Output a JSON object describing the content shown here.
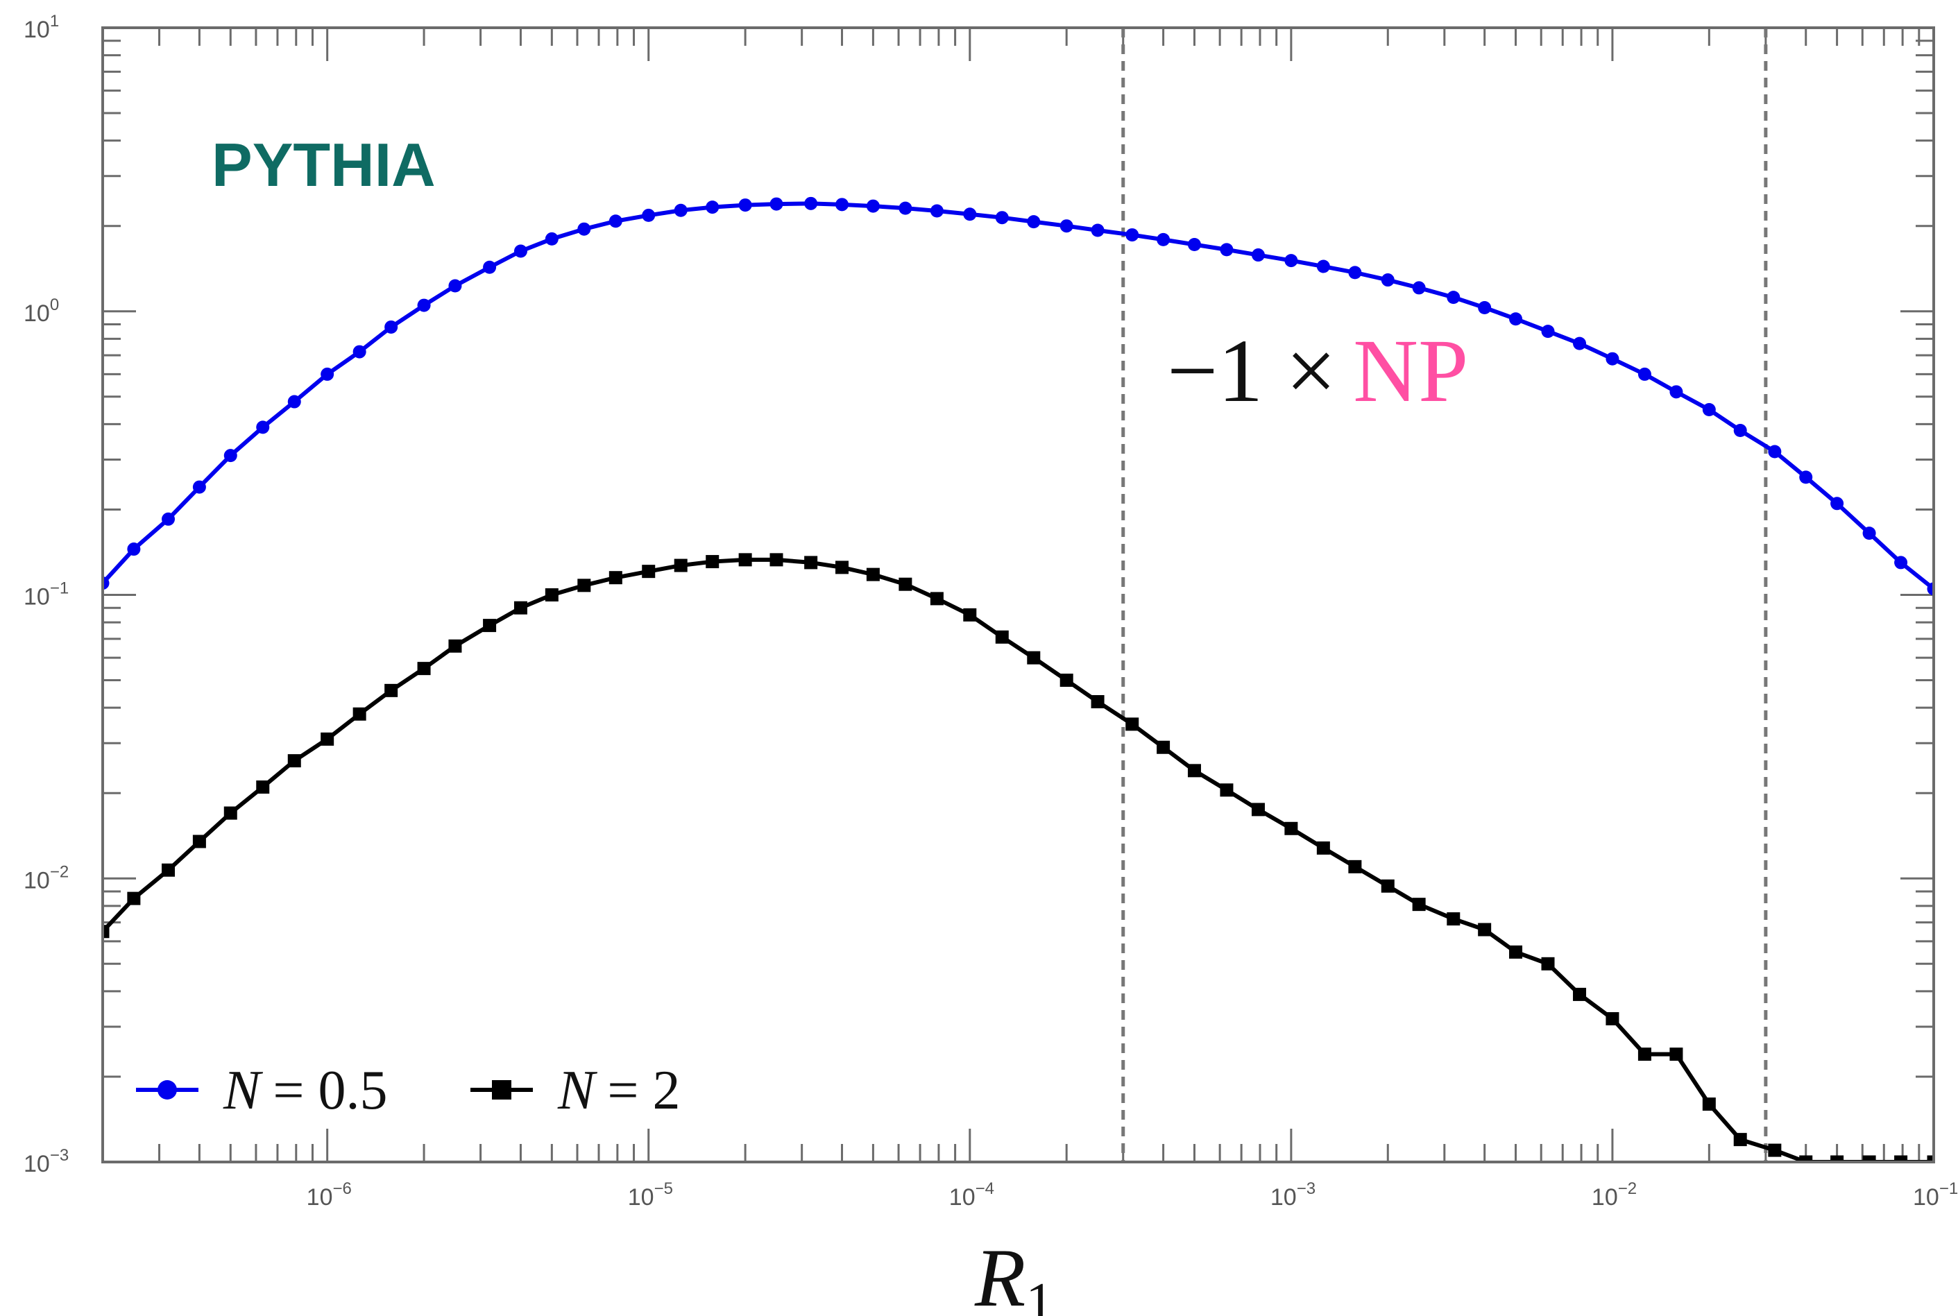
{
  "chart_data": {
    "type": "line",
    "xscale": "log",
    "yscale": "log",
    "xlim": [
      2e-07,
      0.1
    ],
    "ylim": [
      0.001,
      10
    ],
    "x_ticks": [
      {
        "value": 1e-06,
        "base": "10",
        "exp": "−6"
      },
      {
        "value": 1e-05,
        "base": "10",
        "exp": "−5"
      },
      {
        "value": 0.0001,
        "base": "10",
        "exp": "−4"
      },
      {
        "value": 0.001,
        "base": "10",
        "exp": "−3"
      },
      {
        "value": 0.01,
        "base": "10",
        "exp": "−2"
      },
      {
        "value": 0.1,
        "base": "10",
        "exp": "−1"
      }
    ],
    "y_ticks": [
      {
        "value": 0.001,
        "base": "10",
        "exp": "−3"
      },
      {
        "value": 0.01,
        "base": "10",
        "exp": "−2"
      },
      {
        "value": 0.1,
        "base": "10",
        "exp": "−1"
      },
      {
        "value": 1,
        "base": "10",
        "exp": "0"
      },
      {
        "value": 10,
        "base": "10",
        "exp": "1"
      }
    ],
    "xlabel": {
      "main": "R",
      "sub": "1"
    },
    "ylabel": "",
    "vlines": [
      0.0003,
      0.03
    ],
    "annotation_pythia": "PYTHIA",
    "annotation_prefix": "−1 ×",
    "annotation_np": "NP",
    "legend_position": "bottom-left",
    "series": [
      {
        "name": "N = 0.5",
        "name_var": "N",
        "name_rest": "= 0.5",
        "color": "#0000ee",
        "marker": "circle",
        "x": [
          2e-07,
          2.5e-07,
          3.2e-07,
          4e-07,
          5e-07,
          6.3e-07,
          7.9e-07,
          1e-06,
          1.26e-06,
          1.58e-06,
          2e-06,
          2.5e-06,
          3.2e-06,
          4e-06,
          5e-06,
          6.3e-06,
          7.9e-06,
          1e-05,
          1.26e-05,
          1.58e-05,
          2e-05,
          2.5e-05,
          3.2e-05,
          4e-05,
          5e-05,
          6.3e-05,
          7.9e-05,
          0.0001,
          0.000126,
          0.000158,
          0.0002,
          0.00025,
          0.00032,
          0.0004,
          0.0005,
          0.00063,
          0.00079,
          0.001,
          0.00126,
          0.00158,
          0.002,
          0.0025,
          0.0032,
          0.004,
          0.005,
          0.0063,
          0.0079,
          0.01,
          0.0126,
          0.0158,
          0.02,
          0.025,
          0.032,
          0.04,
          0.05,
          0.063,
          0.079,
          0.1
        ],
        "y": [
          0.11,
          0.145,
          0.185,
          0.24,
          0.31,
          0.39,
          0.48,
          0.6,
          0.72,
          0.88,
          1.05,
          1.23,
          1.43,
          1.63,
          1.8,
          1.95,
          2.08,
          2.18,
          2.27,
          2.33,
          2.37,
          2.39,
          2.4,
          2.38,
          2.35,
          2.31,
          2.26,
          2.2,
          2.14,
          2.07,
          2.0,
          1.93,
          1.86,
          1.79,
          1.72,
          1.65,
          1.58,
          1.51,
          1.44,
          1.37,
          1.29,
          1.21,
          1.12,
          1.03,
          0.94,
          0.85,
          0.77,
          0.68,
          0.6,
          0.52,
          0.45,
          0.38,
          0.32,
          0.26,
          0.21,
          0.165,
          0.13,
          0.105
        ]
      },
      {
        "name": "N = 2",
        "name_var": "N",
        "name_rest": "= 2",
        "color": "#000000",
        "marker": "square",
        "x": [
          2e-07,
          2.5e-07,
          3.2e-07,
          4e-07,
          5e-07,
          6.3e-07,
          7.9e-07,
          1e-06,
          1.26e-06,
          1.58e-06,
          2e-06,
          2.5e-06,
          3.2e-06,
          4e-06,
          5e-06,
          6.3e-06,
          7.9e-06,
          1e-05,
          1.26e-05,
          1.58e-05,
          2e-05,
          2.5e-05,
          3.2e-05,
          4e-05,
          5e-05,
          6.3e-05,
          7.9e-05,
          0.0001,
          0.000126,
          0.000158,
          0.0002,
          0.00025,
          0.00032,
          0.0004,
          0.0005,
          0.00063,
          0.00079,
          0.001,
          0.00126,
          0.00158,
          0.002,
          0.0025,
          0.0032,
          0.004,
          0.005,
          0.0063,
          0.0079,
          0.01,
          0.0126,
          0.0158,
          0.02,
          0.025,
          0.032,
          0.04,
          0.05,
          0.063,
          0.079,
          0.1
        ],
        "y": [
          0.0065,
          0.0085,
          0.0107,
          0.0135,
          0.017,
          0.021,
          0.026,
          0.031,
          0.038,
          0.046,
          0.055,
          0.066,
          0.078,
          0.09,
          0.1,
          0.108,
          0.115,
          0.121,
          0.127,
          0.131,
          0.133,
          0.133,
          0.13,
          0.125,
          0.118,
          0.109,
          0.097,
          0.085,
          0.071,
          0.06,
          0.05,
          0.042,
          0.035,
          0.029,
          0.024,
          0.0205,
          0.0175,
          0.015,
          0.0128,
          0.011,
          0.0094,
          0.0081,
          0.0072,
          0.0066,
          0.0055,
          0.005,
          0.0039,
          0.0032,
          0.0024,
          0.0024,
          0.0016,
          0.0012,
          0.0011,
          0.001,
          0.001,
          0.001,
          0.001,
          0.001
        ]
      }
    ]
  }
}
